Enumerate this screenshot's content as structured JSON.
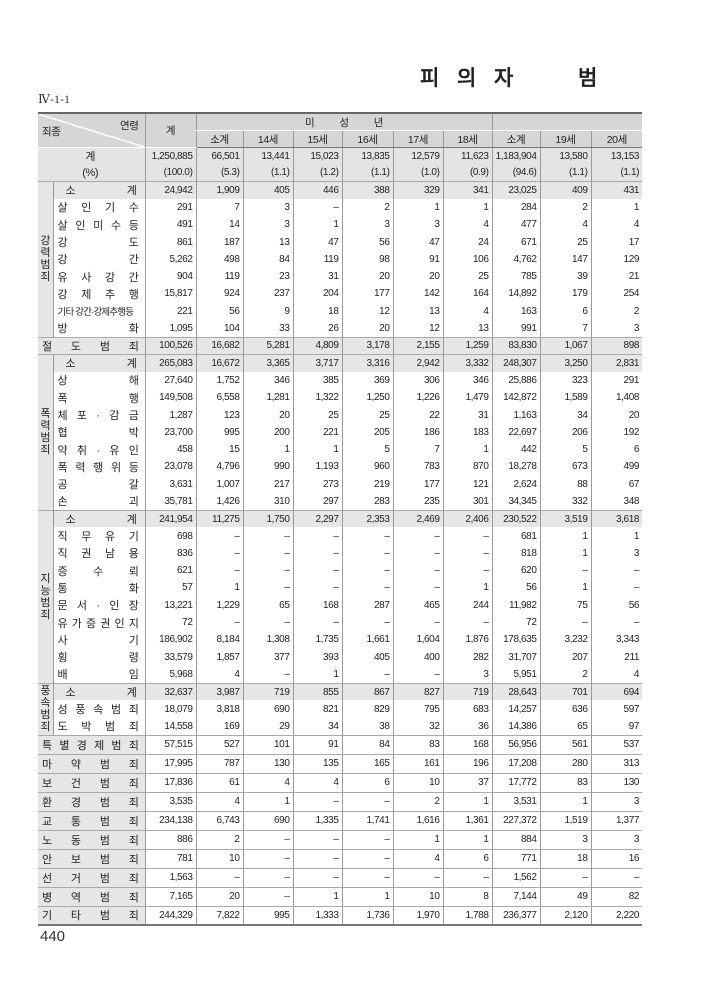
{
  "page": {
    "title": "피  의  자        범",
    "table_id": "Ⅳ-1-1",
    "page_number": "440"
  },
  "header": {
    "corner_top": "연령",
    "corner_bottom": "죄종",
    "total": "계",
    "minor_group": "미          성          년",
    "adult_group": "",
    "columns": [
      "소계",
      "14세",
      "15세",
      "16세",
      "17세",
      "18세",
      "소계",
      "19세",
      "20세"
    ]
  },
  "totals": [
    {
      "label": "계",
      "values": [
        "1,250,885",
        "66,501",
        "13,441",
        "15,023",
        "13,835",
        "12,579",
        "11,623",
        "1,183,904",
        "13,580",
        "13,153"
      ]
    },
    {
      "label": "(%)",
      "values": [
        "(100.0)",
        "(5.3)",
        "(1.1)",
        "(1.2)",
        "(1.1)",
        "(1.0)",
        "(0.9)",
        "(94.6)",
        "(1.1)",
        "(1.1)"
      ]
    }
  ],
  "sections": [
    {
      "group": "강력범죄",
      "rows": [
        {
          "label": "소 계",
          "subtotal": true,
          "values": [
            "24,942",
            "1,909",
            "405",
            "446",
            "388",
            "329",
            "341",
            "23,025",
            "409",
            "431"
          ]
        },
        {
          "label": "살 인 기 수",
          "values": [
            "291",
            "7",
            "3",
            "–",
            "2",
            "1",
            "1",
            "284",
            "2",
            "1"
          ]
        },
        {
          "label": "살 인 미 수 등",
          "values": [
            "491",
            "14",
            "3",
            "1",
            "3",
            "3",
            "4",
            "477",
            "4",
            "4"
          ]
        },
        {
          "label": "강 도",
          "values": [
            "861",
            "187",
            "13",
            "47",
            "56",
            "47",
            "24",
            "671",
            "25",
            "17"
          ]
        },
        {
          "label": "강 간",
          "values": [
            "5,262",
            "498",
            "84",
            "119",
            "98",
            "91",
            "106",
            "4,762",
            "147",
            "129"
          ]
        },
        {
          "label": "유 사 강 간",
          "values": [
            "904",
            "119",
            "23",
            "31",
            "20",
            "20",
            "25",
            "785",
            "39",
            "21"
          ]
        },
        {
          "label": "강 제 추 행",
          "values": [
            "15,817",
            "924",
            "237",
            "204",
            "177",
            "142",
            "164",
            "14,892",
            "179",
            "254"
          ]
        },
        {
          "label": "기타 강간·강제추행등",
          "tight": true,
          "values": [
            "221",
            "56",
            "9",
            "18",
            "12",
            "13",
            "4",
            "163",
            "6",
            "2"
          ]
        },
        {
          "label": "방 화",
          "values": [
            "1,095",
            "104",
            "33",
            "26",
            "20",
            "12",
            "13",
            "991",
            "7",
            "3"
          ]
        }
      ]
    },
    {
      "group": null,
      "rows": [
        {
          "label": "절 도 범 죄",
          "shaded": true,
          "values": [
            "100,526",
            "16,682",
            "5,281",
            "4,809",
            "3,178",
            "2,155",
            "1,259",
            "83,830",
            "1,067",
            "898"
          ]
        }
      ]
    },
    {
      "group": "폭력범죄",
      "rows": [
        {
          "label": "소 계",
          "subtotal": true,
          "values": [
            "265,083",
            "16,672",
            "3,365",
            "3,717",
            "3,316",
            "2,942",
            "3,332",
            "248,307",
            "3,250",
            "2,831"
          ]
        },
        {
          "label": "상 해",
          "values": [
            "27,640",
            "1,752",
            "346",
            "385",
            "369",
            "306",
            "346",
            "25,886",
            "323",
            "291"
          ]
        },
        {
          "label": "폭 행",
          "values": [
            "149,508",
            "6,558",
            "1,281",
            "1,322",
            "1,250",
            "1,226",
            "1,479",
            "142,872",
            "1,589",
            "1,408"
          ]
        },
        {
          "label": "체 포 · 감 금",
          "values": [
            "1,287",
            "123",
            "20",
            "25",
            "25",
            "22",
            "31",
            "1,163",
            "34",
            "20"
          ]
        },
        {
          "label": "협 박",
          "values": [
            "23,700",
            "995",
            "200",
            "221",
            "205",
            "186",
            "183",
            "22,697",
            "206",
            "192"
          ]
        },
        {
          "label": "약 취 · 유 인",
          "values": [
            "458",
            "15",
            "1",
            "1",
            "5",
            "7",
            "1",
            "442",
            "5",
            "6"
          ]
        },
        {
          "label": "폭 력 행 위 등",
          "values": [
            "23,078",
            "4,796",
            "990",
            "1,193",
            "960",
            "783",
            "870",
            "18,278",
            "673",
            "499"
          ]
        },
        {
          "label": "공 갈",
          "values": [
            "3,631",
            "1,007",
            "217",
            "273",
            "219",
            "177",
            "121",
            "2,624",
            "88",
            "67"
          ]
        },
        {
          "label": "손 괴",
          "values": [
            "35,781",
            "1,426",
            "310",
            "297",
            "283",
            "235",
            "301",
            "34,345",
            "332",
            "348"
          ]
        }
      ]
    },
    {
      "group": "지능범죄",
      "rows": [
        {
          "label": "소 계",
          "subtotal": true,
          "values": [
            "241,954",
            "11,275",
            "1,750",
            "2,297",
            "2,353",
            "2,469",
            "2,406",
            "230,522",
            "3,519",
            "3,618"
          ]
        },
        {
          "label": "직 무 유 기",
          "values": [
            "698",
            "–",
            "–",
            "–",
            "–",
            "–",
            "–",
            "681",
            "1",
            "1"
          ]
        },
        {
          "label": "직 권 남 용",
          "values": [
            "836",
            "–",
            "–",
            "–",
            "–",
            "–",
            "–",
            "818",
            "1",
            "3"
          ]
        },
        {
          "label": "증 수 뢰",
          "values": [
            "621",
            "–",
            "–",
            "–",
            "–",
            "–",
            "–",
            "620",
            "–",
            "–"
          ]
        },
        {
          "label": "통 화",
          "values": [
            "57",
            "1",
            "–",
            "–",
            "–",
            "–",
            "1",
            "56",
            "1",
            "–"
          ]
        },
        {
          "label": "문 서 · 인 장",
          "values": [
            "13,221",
            "1,229",
            "65",
            "168",
            "287",
            "465",
            "244",
            "11,982",
            "75",
            "56"
          ]
        },
        {
          "label": "유 가 증 권 인 지",
          "values": [
            "72",
            "–",
            "–",
            "–",
            "–",
            "–",
            "–",
            "72",
            "–",
            "–"
          ]
        },
        {
          "label": "사 기",
          "values": [
            "186,902",
            "8,184",
            "1,308",
            "1,735",
            "1,661",
            "1,604",
            "1,876",
            "178,635",
            "3,232",
            "3,343"
          ]
        },
        {
          "label": "횡 령",
          "values": [
            "33,579",
            "1,857",
            "377",
            "393",
            "405",
            "400",
            "282",
            "31,707",
            "207",
            "211"
          ]
        },
        {
          "label": "배 임",
          "values": [
            "5,968",
            "4",
            "–",
            "1",
            "–",
            "–",
            "3",
            "5,951",
            "2",
            "4"
          ]
        }
      ]
    },
    {
      "group": "풍속범죄",
      "rows": [
        {
          "label": "소 계",
          "subtotal": true,
          "values": [
            "32,637",
            "3,987",
            "719",
            "855",
            "867",
            "827",
            "719",
            "28,643",
            "701",
            "694"
          ]
        },
        {
          "label": "성 풍 속 범 죄",
          "values": [
            "18,079",
            "3,818",
            "690",
            "821",
            "829",
            "795",
            "683",
            "14,257",
            "636",
            "597"
          ]
        },
        {
          "label": "도 박 범 죄",
          "values": [
            "14,558",
            "169",
            "29",
            "34",
            "38",
            "32",
            "36",
            "14,386",
            "65",
            "97"
          ]
        }
      ]
    },
    {
      "group": null,
      "single": true,
      "rows": [
        {
          "label": "특 별 경 제 범 죄",
          "values": [
            "57,515",
            "527",
            "101",
            "91",
            "84",
            "83",
            "168",
            "56,956",
            "561",
            "537"
          ]
        },
        {
          "label": "마 약 범 죄",
          "values": [
            "17,995",
            "787",
            "130",
            "135",
            "165",
            "161",
            "196",
            "17,208",
            "280",
            "313"
          ]
        },
        {
          "label": "보 건 범 죄",
          "values": [
            "17,836",
            "61",
            "4",
            "4",
            "6",
            "10",
            "37",
            "17,772",
            "83",
            "130"
          ]
        },
        {
          "label": "환 경 범 죄",
          "values": [
            "3,535",
            "4",
            "1",
            "–",
            "–",
            "2",
            "1",
            "3,531",
            "1",
            "3"
          ]
        },
        {
          "label": "교 통 범 죄",
          "values": [
            "234,138",
            "6,743",
            "690",
            "1,335",
            "1,741",
            "1,616",
            "1,361",
            "227,372",
            "1,519",
            "1,377"
          ]
        },
        {
          "label": "노 동 범 죄",
          "values": [
            "886",
            "2",
            "–",
            "–",
            "–",
            "1",
            "1",
            "884",
            "3",
            "3"
          ]
        },
        {
          "label": "안 보 범 죄",
          "values": [
            "781",
            "10",
            "–",
            "–",
            "–",
            "4",
            "6",
            "771",
            "18",
            "16"
          ]
        },
        {
          "label": "선 거 범 죄",
          "values": [
            "1,563",
            "–",
            "–",
            "–",
            "–",
            "–",
            "–",
            "1,562",
            "–",
            "–"
          ]
        },
        {
          "label": "병 역 범 죄",
          "values": [
            "7,165",
            "20",
            "–",
            "1",
            "1",
            "10",
            "8",
            "7,144",
            "49",
            "82"
          ]
        },
        {
          "label": "기 타 범 죄",
          "values": [
            "244,329",
            "7,822",
            "995",
            "1,333",
            "1,736",
            "1,970",
            "1,788",
            "236,377",
            "2,120",
            "2,220"
          ]
        }
      ]
    }
  ]
}
